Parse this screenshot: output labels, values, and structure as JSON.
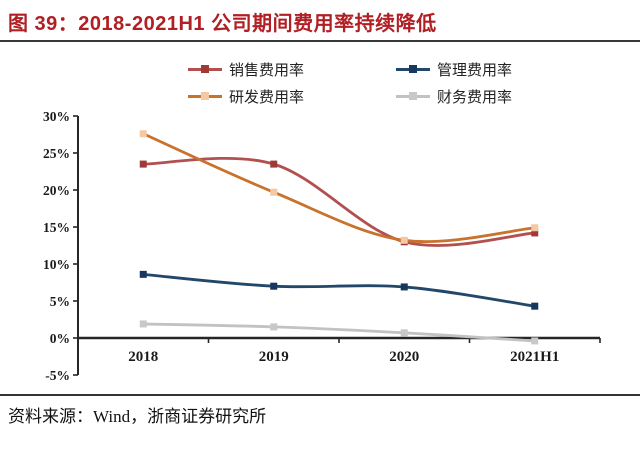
{
  "header": {
    "title": "图 39：2018-2021H1 公司期间费用率持续降低"
  },
  "footer": {
    "source": "资料来源：Wind，浙商证券研究所"
  },
  "colors": {
    "title_red": "#B01F24",
    "rule_dark": "#383838",
    "axis": "#262626",
    "label_text": "#1a1a1a"
  },
  "legend": {
    "items": [
      {
        "key": "sales-expense-ratio",
        "label": "销售费用率",
        "line_color": "#B2504F",
        "marker_color": "#9E3B38"
      },
      {
        "key": "admin-expense-ratio",
        "label": "管理费用率",
        "line_color": "#23476B",
        "marker_color": "#17375E"
      },
      {
        "key": "rnd-expense-ratio",
        "label": "研发费用率",
        "line_color": "#C8722C",
        "marker_color": "#F4C8A2"
      },
      {
        "key": "finance-expense-ratio",
        "label": "财务费用率",
        "line_color": "#C2C2C2",
        "marker_color": "#C8C8C8"
      }
    ]
  },
  "chart_data": {
    "type": "line",
    "title": "2018-2021H1 公司期间费用率持续降低",
    "categories": [
      "2018",
      "2019",
      "2020",
      "2021H1"
    ],
    "series": [
      {
        "key": "sales-expense-ratio",
        "name": "销售费用率",
        "values": [
          23.5,
          23.5,
          13.0,
          14.2
        ],
        "line_color": "#B2504F",
        "marker_color": "#9E3B38"
      },
      {
        "key": "rnd-expense-ratio",
        "name": "研发费用率",
        "values": [
          27.6,
          19.7,
          13.2,
          14.9
        ],
        "line_color": "#C8722C",
        "marker_color": "#F4C8A2"
      },
      {
        "key": "admin-expense-ratio",
        "name": "管理费用率",
        "values": [
          8.6,
          7.0,
          6.9,
          4.3
        ],
        "line_color": "#23476B",
        "marker_color": "#17375E"
      },
      {
        "key": "finance-expense-ratio",
        "name": "财务费用率",
        "values": [
          1.9,
          1.5,
          0.7,
          -0.4
        ],
        "line_color": "#C2C2C2",
        "marker_color": "#C8C8C8"
      }
    ],
    "xlabel": "",
    "ylabel": "",
    "ylim": [
      -5,
      30
    ],
    "ytick_step": 5,
    "ytick_labels": [
      "30%",
      "25%",
      "20%",
      "15%",
      "10%",
      "5%",
      "0%",
      "-5%"
    ],
    "grid": false,
    "smooth": true,
    "legend_position": "top"
  }
}
